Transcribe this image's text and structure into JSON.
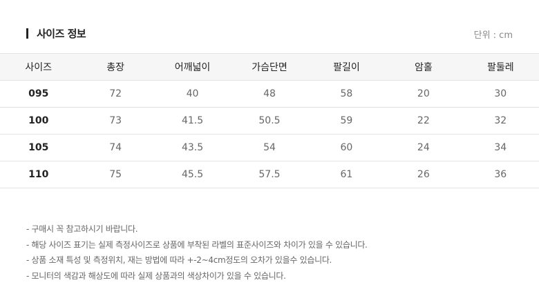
{
  "header": {
    "title": "사이즈 정보",
    "unit": "단위 : cm"
  },
  "table": {
    "columns": [
      "사이즈",
      "총장",
      "어깨넓이",
      "가슴단면",
      "팔길이",
      "암홀",
      "팔둘레"
    ],
    "rows": [
      [
        "095",
        "72",
        "40",
        "48",
        "58",
        "20",
        "30"
      ],
      [
        "100",
        "73",
        "41.5",
        "50.5",
        "59",
        "22",
        "32"
      ],
      [
        "105",
        "74",
        "43.5",
        "54",
        "60",
        "24",
        "34"
      ],
      [
        "110",
        "75",
        "45.5",
        "57.5",
        "61",
        "26",
        "36"
      ]
    ]
  },
  "notes": [
    "- 구매시 꼭 참고하시기 바랍니다.",
    "- 해당 사이즈 표기는 실제 측정사이즈로 상품에 부착된 라벨의 표준사이즈와 차이가 있을 수 있습니다.",
    "- 상품 소재 특성 및 측정위치, 재는 방법에 따라 +-2~4cm정도의 오차가 있을수 있습니다.",
    "- 모니터의 색감과 해상도에 따라 실제 상품과의 색상차이가 있을 수 있습니다."
  ]
}
